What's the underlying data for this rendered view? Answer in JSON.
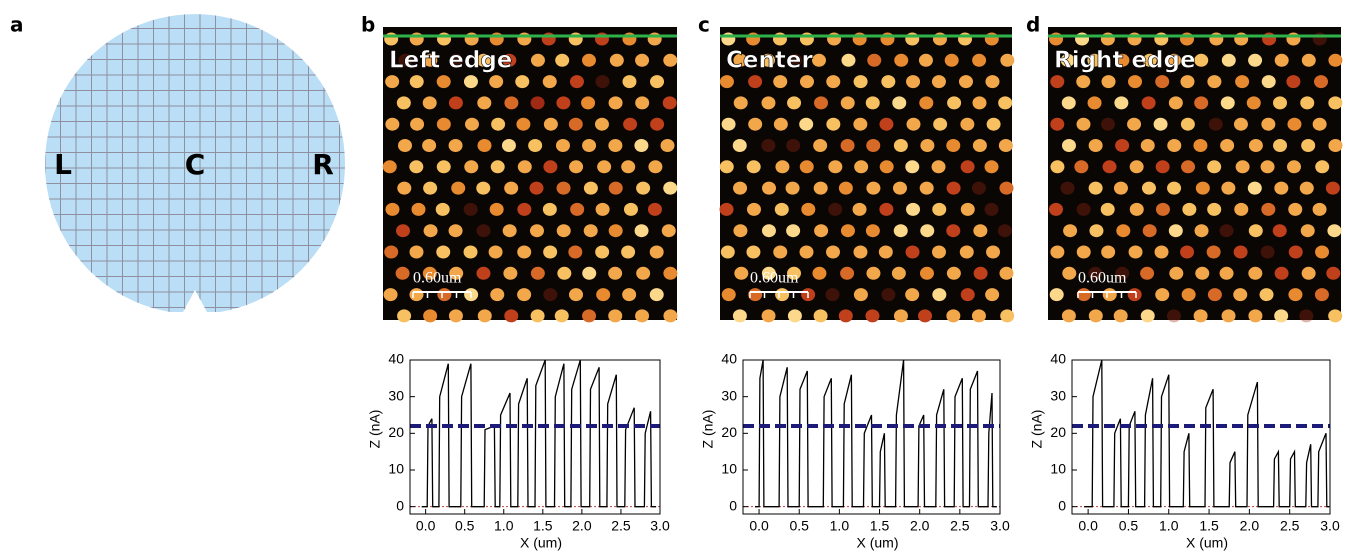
{
  "wafer": {
    "label": "a",
    "markers": [
      "L",
      "C",
      "R"
    ]
  },
  "images": [
    {
      "label": "b",
      "title": "Left edge",
      "scale_bar": "0.60um"
    },
    {
      "label": "c",
      "title": "Center",
      "scale_bar": "0.60um"
    },
    {
      "label": "d",
      "title": "Right edge",
      "scale_bar": "0.60um"
    }
  ],
  "chart_data": [
    {
      "type": "line",
      "xlabel": "X (um)",
      "ylabel": "Z (nA)",
      "color": "#000000",
      "xlim": [
        -0.2,
        3.0
      ],
      "ylim": [
        -2,
        40
      ],
      "xticks": [
        {
          "value": 0,
          "label": "0.0"
        },
        0.5,
        {
          "value": 1,
          "label": "1.0"
        },
        1.5,
        {
          "value": 2,
          "label": "2.0"
        },
        2.5,
        {
          "value": 3,
          "label": "3.0"
        }
      ],
      "yticks": [
        0,
        10,
        20,
        30,
        40
      ],
      "reference_line": {
        "value": 22,
        "color": "#1c1c78"
      },
      "baseline": {
        "value": 0,
        "color": "#c04040"
      },
      "x": [
        -0.05,
        0.02,
        0.03,
        0.08,
        0.09,
        0.17,
        0.18,
        0.29,
        0.3,
        0.45,
        0.46,
        0.58,
        0.59,
        0.75,
        0.76,
        0.88,
        0.89,
        0.95,
        0.96,
        1.08,
        1.09,
        1.18,
        1.19,
        1.3,
        1.31,
        1.4,
        1.41,
        1.53,
        1.54,
        1.65,
        1.66,
        1.77,
        1.78,
        1.86,
        1.87,
        1.98,
        1.99,
        2.1,
        2.11,
        2.22,
        2.23,
        2.32,
        2.33,
        2.44,
        2.45,
        2.55,
        2.56,
        2.67,
        2.68,
        2.8,
        2.81,
        2.88,
        2.89,
        2.95
      ],
      "values": [
        0,
        0,
        22,
        24,
        0,
        0,
        30,
        39,
        0,
        0,
        30,
        39,
        0,
        0,
        21,
        22,
        0,
        0,
        25,
        31,
        0,
        0,
        28,
        35,
        0,
        0,
        33,
        40,
        0,
        0,
        30,
        39,
        0,
        0,
        32,
        40,
        0,
        0,
        32,
        38,
        0,
        0,
        28,
        36,
        0,
        0,
        21,
        27,
        0,
        0,
        20,
        26,
        0,
        0
      ]
    },
    {
      "type": "line",
      "xlabel": "X (um)",
      "ylabel": "Z (nA)",
      "color": "#000000",
      "xlim": [
        -0.2,
        3.0
      ],
      "ylim": [
        -2,
        40
      ],
      "xticks": [
        {
          "value": 0,
          "label": "0.0"
        },
        0.5,
        {
          "value": 1,
          "label": "1.0"
        },
        1.5,
        {
          "value": 2,
          "label": "2.0"
        },
        2.5,
        {
          "value": 3,
          "label": "3.0"
        }
      ],
      "yticks": [
        0,
        10,
        20,
        30,
        40
      ],
      "reference_line": {
        "value": 22,
        "color": "#1c1c78"
      },
      "baseline": {
        "value": 0,
        "color": "#c04040"
      },
      "x": [
        -0.05,
        0.0,
        0.01,
        0.05,
        0.06,
        0.25,
        0.26,
        0.35,
        0.36,
        0.5,
        0.51,
        0.6,
        0.61,
        0.8,
        0.81,
        0.9,
        0.91,
        1.05,
        1.06,
        1.15,
        1.16,
        1.3,
        1.31,
        1.4,
        1.41,
        1.5,
        1.51,
        1.56,
        1.57,
        1.7,
        1.71,
        1.8,
        1.81,
        1.98,
        1.99,
        2.05,
        2.06,
        2.2,
        2.21,
        2.3,
        2.31,
        2.43,
        2.44,
        2.53,
        2.54,
        2.62,
        2.63,
        2.72,
        2.73,
        2.85,
        2.86,
        2.9,
        2.91,
        2.96
      ],
      "values": [
        0,
        0,
        35,
        40,
        0,
        0,
        30,
        38,
        0,
        0,
        32,
        37,
        0,
        0,
        30,
        35,
        0,
        0,
        28,
        36,
        0,
        0,
        20,
        25,
        0,
        0,
        15,
        20,
        0,
        0,
        25,
        40,
        0,
        0,
        22,
        25,
        0,
        0,
        25,
        32,
        0,
        0,
        30,
        35,
        0,
        0,
        32,
        37,
        0,
        0,
        20,
        31,
        0,
        0
      ]
    },
    {
      "type": "line",
      "xlabel": "X (um)",
      "ylabel": "Z (nA)",
      "color": "#000000",
      "xlim": [
        -0.2,
        3.0
      ],
      "ylim": [
        -2,
        40
      ],
      "xticks": [
        {
          "value": 0,
          "label": "0.0"
        },
        0.5,
        {
          "value": 1,
          "label": "1.0"
        },
        1.5,
        {
          "value": 2,
          "label": "2.0"
        },
        2.5,
        {
          "value": 3,
          "label": "3.0"
        }
      ],
      "yticks": [
        0,
        10,
        20,
        30,
        40
      ],
      "reference_line": {
        "value": 22,
        "color": "#1c1c78"
      },
      "baseline": {
        "value": 0,
        "color": "#c04040"
      },
      "x": [
        -0.05,
        0.05,
        0.06,
        0.17,
        0.18,
        0.32,
        0.33,
        0.4,
        0.41,
        0.5,
        0.51,
        0.58,
        0.59,
        0.7,
        0.71,
        0.8,
        0.81,
        0.9,
        0.91,
        1.0,
        1.01,
        1.18,
        1.19,
        1.25,
        1.26,
        1.45,
        1.46,
        1.55,
        1.56,
        1.75,
        1.76,
        1.82,
        1.83,
        1.97,
        1.98,
        2.1,
        2.11,
        2.3,
        2.31,
        2.36,
        2.37,
        2.5,
        2.51,
        2.56,
        2.57,
        2.7,
        2.71,
        2.76,
        2.77,
        2.85,
        2.86,
        2.95,
        2.96,
        2.99
      ],
      "values": [
        0,
        0,
        30,
        40,
        0,
        0,
        20,
        24,
        0,
        0,
        22,
        26,
        0,
        0,
        25,
        35,
        0,
        0,
        30,
        36,
        0,
        0,
        15,
        20,
        0,
        0,
        27,
        32,
        0,
        0,
        12,
        15,
        0,
        0,
        25,
        34,
        0,
        0,
        13,
        15,
        0,
        0,
        13,
        15,
        0,
        0,
        12,
        17,
        0,
        0,
        15,
        20,
        0,
        0
      ]
    }
  ]
}
